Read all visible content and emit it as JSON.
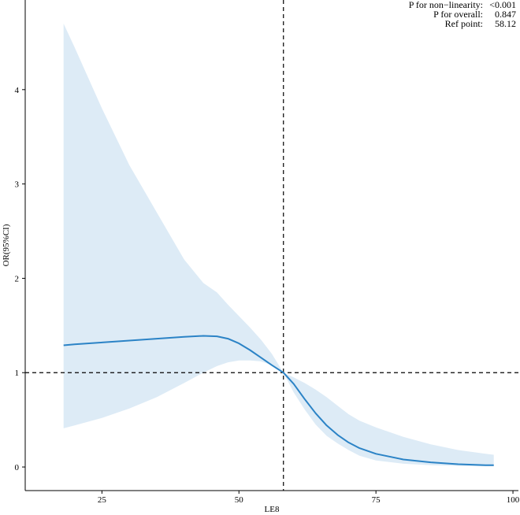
{
  "chart_data": {
    "type": "line",
    "xlabel": "LE8",
    "ylabel": "OR(95%CI)",
    "xlim": [
      11,
      101
    ],
    "ylim": [
      -0.25,
      4.95
    ],
    "x_ticks": [
      25,
      50,
      75,
      100
    ],
    "y_ticks": [
      0,
      1,
      2,
      3,
      4
    ],
    "reference_lines": {
      "x": 58.12,
      "y": 1
    },
    "annotations": [
      {
        "label": "P for non−linearity:",
        "value": "<0.001"
      },
      {
        "label": "P for overall:",
        "value": "0.847"
      },
      {
        "label": "Ref point:",
        "value": "58.12"
      }
    ],
    "colors": {
      "line": "#2b83c6",
      "band": "#ddebf6",
      "reference": "#000000"
    },
    "series": [
      {
        "x": [
          18,
          20,
          25,
          30,
          35,
          40,
          43.5,
          46,
          48,
          50,
          52,
          54,
          56,
          58.12,
          60,
          62,
          64,
          66,
          68,
          70,
          72,
          75,
          80,
          85,
          90,
          95,
          96.5
        ],
        "y": [
          1.29,
          1.3,
          1.32,
          1.34,
          1.36,
          1.38,
          1.39,
          1.385,
          1.36,
          1.31,
          1.24,
          1.16,
          1.08,
          1.0,
          0.88,
          0.72,
          0.57,
          0.44,
          0.34,
          0.26,
          0.2,
          0.14,
          0.08,
          0.05,
          0.03,
          0.02,
          0.02
        ],
        "lower": [
          0.41,
          0.44,
          0.52,
          0.62,
          0.74,
          0.89,
          1.0,
          1.07,
          1.11,
          1.13,
          1.13,
          1.12,
          1.08,
          1.0,
          0.79,
          0.61,
          0.45,
          0.33,
          0.25,
          0.18,
          0.12,
          0.07,
          0.035,
          0.02,
          0.012,
          0.008,
          0.008
        ],
        "upper": [
          4.7,
          4.45,
          3.8,
          3.2,
          2.7,
          2.2,
          1.95,
          1.85,
          1.72,
          1.6,
          1.48,
          1.35,
          1.2,
          1.0,
          0.95,
          0.89,
          0.82,
          0.74,
          0.65,
          0.56,
          0.49,
          0.42,
          0.32,
          0.24,
          0.18,
          0.14,
          0.13
        ]
      }
    ]
  }
}
